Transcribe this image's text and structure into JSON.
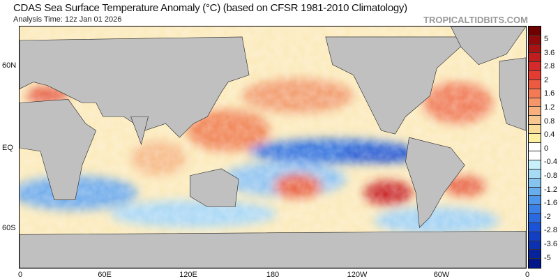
{
  "title": "CDAS Sea Surface Temperature Anomaly (°C) (based on CFSR 1981-2010 Climatology)",
  "subtitle": "Analysis Time: 12z Jan 01 2026",
  "brand": "TROPICALTIDBITS.COM",
  "y_axis_labels": [
    "60N",
    "EQ",
    "60S"
  ],
  "x_axis_labels": [
    "0",
    "60E",
    "120E",
    "180",
    "120W",
    "60W",
    "0"
  ],
  "colorbar": {
    "labels": [
      "5",
      "3.6",
      "2.8",
      "2",
      "1.6",
      "1.2",
      "0.8",
      "0.4",
      "0",
      "-0.4",
      "-0.8",
      "-1.2",
      "-1.6",
      "-2",
      "-2.8",
      "-3.6",
      "-5"
    ],
    "colors": [
      "#6e0000",
      "#8f0a0a",
      "#a81414",
      "#bf1e1e",
      "#d42a2a",
      "#e43c32",
      "#ee5a40",
      "#f37a55",
      "#f5966a",
      "#f7b07e",
      "#f8c78f",
      "#fadd9a",
      "#fdf0a0",
      "#ffffff",
      "#ffffff",
      "#c8f0fa",
      "#a6daf5",
      "#86c4f0",
      "#68aeee",
      "#4f97ea",
      "#3b80e6",
      "#2a69e0",
      "#1c52d6",
      "#123fc4",
      "#0b30b0",
      "#06239c",
      "#031888"
    ]
  },
  "colors": {
    "land": "#c0c0c0",
    "warm": "#e8553a",
    "cool": "#3c7fe0",
    "ice": "#ffffff"
  }
}
